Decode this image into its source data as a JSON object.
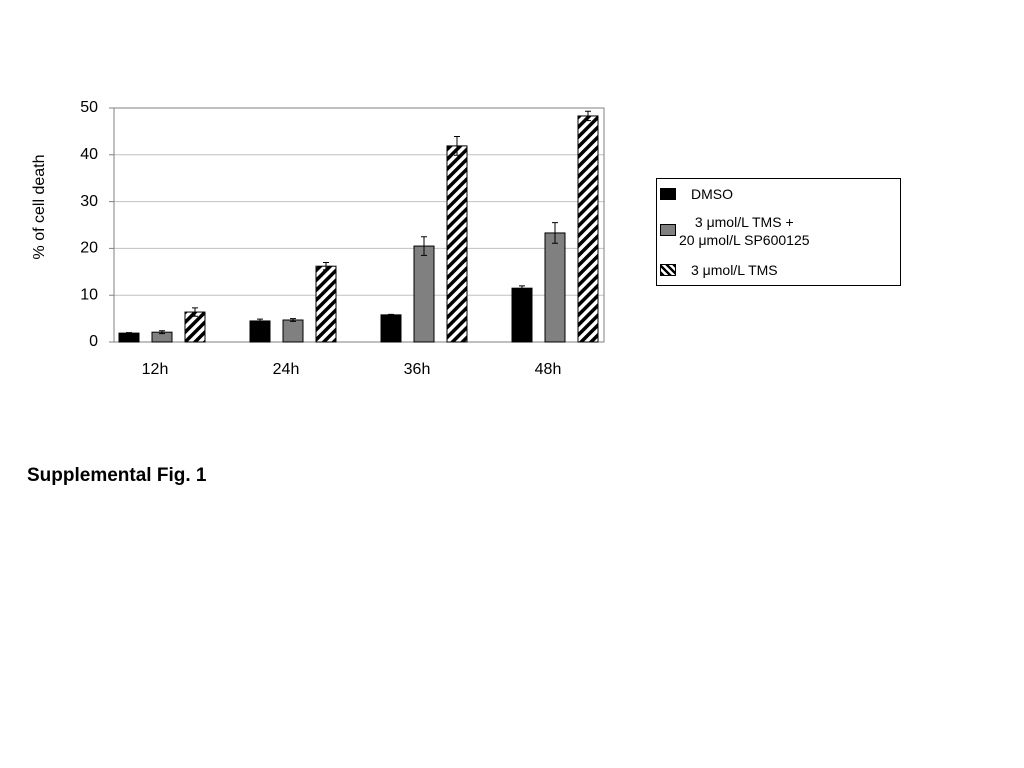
{
  "chart_data": {
    "type": "bar",
    "y_label": "% of cell death",
    "caption": "Supplemental Fig. 1",
    "categories": [
      "12h",
      "24h",
      "36h",
      "48h"
    ],
    "series": [
      {
        "name": "DMSO",
        "color": "#000000",
        "values": [
          1.9,
          4.5,
          5.8,
          11.5
        ],
        "errors": [
          0.1,
          0.4,
          0.1,
          0.5
        ]
      },
      {
        "name": "3 μmol/L TMS +\n20 μmol/L SP600125",
        "color": "#808080",
        "values": [
          2.1,
          4.7,
          20.5,
          23.3
        ],
        "errors": [
          0.3,
          0.3,
          2.0,
          2.2
        ]
      },
      {
        "name": "3 μmol/L TMS",
        "color": "#ffffff",
        "hatch": true,
        "values": [
          6.4,
          16.2,
          41.9,
          48.3
        ],
        "errors": [
          0.9,
          0.8,
          2.0,
          1.0
        ]
      }
    ],
    "ylim": [
      0,
      50
    ],
    "yticks": [
      0,
      10,
      20,
      30,
      40,
      50
    ],
    "grid": true
  }
}
